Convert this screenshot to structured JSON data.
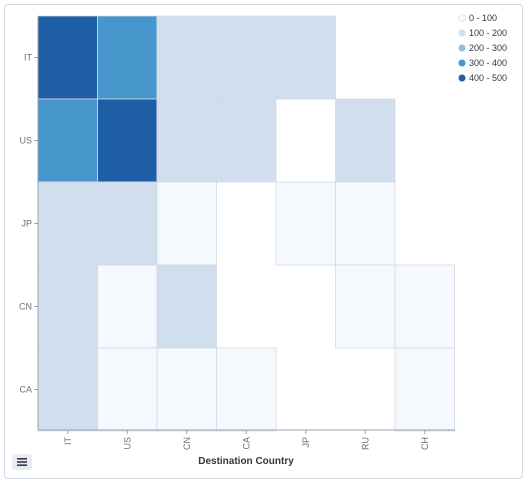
{
  "chart_data": {
    "type": "heatmap",
    "xlabel": "Destination Country",
    "ylabel": "",
    "x_categories": [
      "IT",
      "US",
      "CN",
      "CA",
      "JP",
      "RU",
      "CH"
    ],
    "y_categories": [
      "IT",
      "US",
      "JP",
      "CN",
      "CA"
    ],
    "values": [
      [
        450,
        350,
        150,
        150,
        150,
        null,
        null
      ],
      [
        350,
        400,
        150,
        150,
        null,
        150,
        null
      ],
      [
        150,
        150,
        50,
        null,
        50,
        50,
        null
      ],
      [
        150,
        50,
        150,
        null,
        null,
        50,
        50
      ],
      [
        150,
        50,
        50,
        50,
        null,
        null,
        50
      ]
    ],
    "legend": {
      "placement": "top-right",
      "ranges": [
        {
          "label": "0 - 100",
          "color": "#f5f8fd"
        },
        {
          "label": "100 - 200",
          "color": "#d0deed"
        },
        {
          "label": "200 - 300",
          "color": "#8fbddc"
        },
        {
          "label": "300 - 400",
          "color": "#4695cb"
        },
        {
          "label": "400 - 500",
          "color": "#1d5ea6"
        }
      ]
    },
    "grid": true
  },
  "legend_toggle_icon": "list-icon"
}
